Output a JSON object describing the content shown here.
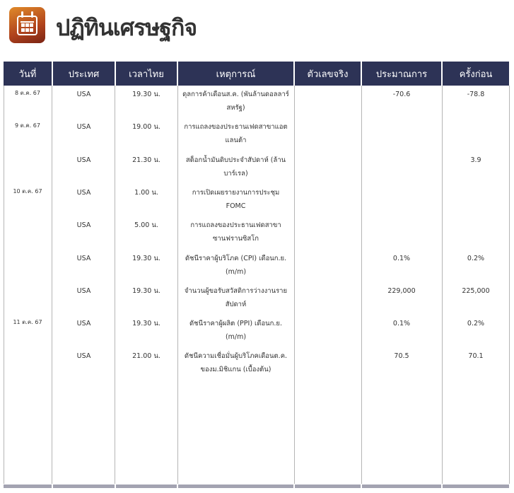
{
  "page": {
    "title": "ปฏิทินเศรษฐกิจ",
    "logo_icon": "calendar-icon"
  },
  "colors": {
    "header_bg": "#2d3356",
    "logo_gradient_start": "#e08a2a",
    "logo_gradient_end": "#7a2314"
  },
  "table": {
    "headers": [
      "วันที่",
      "ประเทศ",
      "เวลาไทย",
      "เหตุการณ์",
      "ตัวเลขจริง",
      "ประมาณการ",
      "ครั้งก่อน"
    ],
    "rows": [
      {
        "date": "8 ต.ค. 67",
        "country": "USA",
        "time": "19.30 น.",
        "event": "ดุลการค้าเดือนส.ค. (พันล้านดอลลาร์สหรัฐ)",
        "actual": "",
        "forecast": "-70.6",
        "previous": "-78.8"
      },
      {
        "date": "9 ต.ค. 67",
        "country": "USA",
        "time": "19.00 น.",
        "event": "การแถลงของประธานเฟดสาขาแอตแลนต้า",
        "actual": "",
        "forecast": "",
        "previous": ""
      },
      {
        "date": "",
        "country": "USA",
        "time": "21.30 น.",
        "event": "สต็อกน้ำมันดิบประจำสัปดาห์ (ล้านบาร์เรล)",
        "actual": "",
        "forecast": "",
        "previous": "3.9"
      },
      {
        "date": "10 ต.ค. 67",
        "country": "USA",
        "time": "1.00 น.",
        "event": "การเปิดเผยรายงานการประชุม FOMC",
        "actual": "",
        "forecast": "",
        "previous": ""
      },
      {
        "date": "",
        "country": "USA",
        "time": "5.00 น.",
        "event": "การแถลงของประธานเฟดสาขาซานฟรานซิสโก",
        "actual": "",
        "forecast": "",
        "previous": ""
      },
      {
        "date": "",
        "country": "USA",
        "time": "19.30 น.",
        "event": "ดัชนีราคาผู้บริโภค (CPI) เดือนก.ย.(m/m)",
        "actual": "",
        "forecast": "0.1%",
        "previous": "0.2%"
      },
      {
        "date": "",
        "country": "USA",
        "time": "19.30 น.",
        "event": "จำนวนผู้ขอรับสวัสดิการว่างงานรายสัปดาห์",
        "actual": "",
        "forecast": "229,000",
        "previous": "225,000"
      },
      {
        "date": "11 ต.ค. 67",
        "country": "USA",
        "time": "19.30 น.",
        "event": "ดัชนีราคาผู้ผลิต (PPI) เดือนก.ย. (m/m)",
        "actual": "",
        "forecast": "0.1%",
        "previous": "0.2%"
      },
      {
        "date": "",
        "country": "USA",
        "time": "21.00 น.",
        "event": "ดัชนีความเชื่อมั่นผู้บริโภคเดือนต.ค. ของม.มิชิแกน (เบื้องต้น)",
        "actual": "",
        "forecast": "70.5",
        "previous": "70.1"
      }
    ]
  }
}
